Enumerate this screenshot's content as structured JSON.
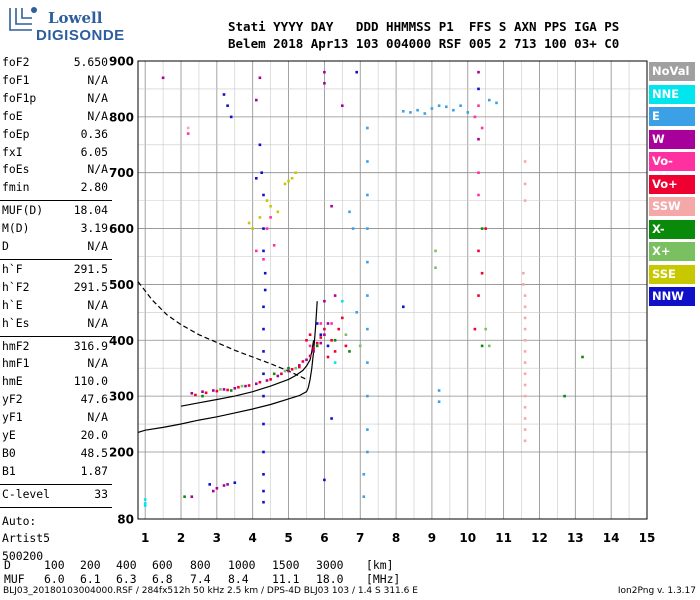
{
  "logo": {
    "line1": "Lowell",
    "line2": "DIGISONDE"
  },
  "header": {
    "labels": "Stati YYYY DAY   DDD HHMMSS P1  FFS S AXN PPS IGA PS",
    "values": "Belem 2018 Apr13 103 004000 RSF 005 2 713 100 03+ C0"
  },
  "params": {
    "group1": [
      {
        "k": "foF2",
        "v": "5.650"
      },
      {
        "k": "foF1",
        "v": "N/A"
      },
      {
        "k": "foF1p",
        "v": "N/A"
      },
      {
        "k": "foE",
        "v": "N/A"
      },
      {
        "k": "foEp",
        "v": "0.36"
      },
      {
        "k": "fxI",
        "v": "6.05"
      },
      {
        "k": "foEs",
        "v": "N/A"
      },
      {
        "k": "fmin",
        "v": "2.80"
      }
    ],
    "group2": [
      {
        "k": "MUF(D)",
        "v": "18.04"
      },
      {
        "k": "M(D)",
        "v": "3.19"
      },
      {
        "k": "D",
        "v": "N/A"
      }
    ],
    "group3": [
      {
        "k": "h`F",
        "v": "291.5"
      },
      {
        "k": "h`F2",
        "v": "291.5"
      },
      {
        "k": "h`E",
        "v": "N/A"
      },
      {
        "k": "h`Es",
        "v": "N/A"
      }
    ],
    "group4": [
      {
        "k": "hmF2",
        "v": "316.9"
      },
      {
        "k": "hmF1",
        "v": "N/A"
      },
      {
        "k": "hmE",
        "v": "110.0"
      },
      {
        "k": "yF2",
        "v": "47.6"
      },
      {
        "k": "yF1",
        "v": "N/A"
      },
      {
        "k": "yE",
        "v": "20.0"
      },
      {
        "k": "B0",
        "v": "48.5"
      },
      {
        "k": "B1",
        "v": "1.87"
      }
    ],
    "group5": [
      {
        "k": "C-level",
        "v": "33"
      }
    ],
    "auto": [
      "Auto:",
      "Artist5",
      "500200"
    ]
  },
  "legend": [
    {
      "label": "NoVal",
      "bg": "#a0a0a0",
      "fg": "#ffffff"
    },
    {
      "label": "NNE",
      "bg": "#00e5ee",
      "fg": "#ffffff"
    },
    {
      "label": "E",
      "bg": "#3ca0e6",
      "fg": "#ffffff"
    },
    {
      "label": "W",
      "bg": "#a8009a",
      "fg": "#ffffff"
    },
    {
      "label": "Vo-",
      "bg": "#ff30a0",
      "fg": "#ffffff"
    },
    {
      "label": "Vo+",
      "bg": "#ee0030",
      "fg": "#ffffff"
    },
    {
      "label": "SSW",
      "bg": "#f4a8a8",
      "fg": "#ffffff"
    },
    {
      "label": "X-",
      "bg": "#0a8a0a",
      "fg": "#ffffff"
    },
    {
      "label": "X+",
      "bg": "#7ac060",
      "fg": "#ffffff"
    },
    {
      "label": "SSE",
      "bg": "#c8c800",
      "fg": "#ffffff"
    },
    {
      "label": "NNW",
      "bg": "#1010c8",
      "fg": "#ffffff"
    }
  ],
  "muf_table": {
    "D": [
      "D",
      "100",
      "200",
      "400",
      "600",
      "800",
      "1000",
      "1500",
      "3000",
      "[km]"
    ],
    "MUF": [
      "MUF",
      "6.0",
      "6.1",
      "6.3",
      "6.8",
      "7.4",
      "8.4",
      "11.1",
      "18.0",
      "[MHz]"
    ]
  },
  "footer": {
    "left": "BLJ03_20180103004000.RSF / 284fx512h 50 kHz 2.5 km / DPS-4D BLJ03 103 / 1.4 S 311.6 E",
    "right": "Ion2Png v. 1.3.17"
  },
  "chart_data": {
    "type": "scatter",
    "x_ticks": [
      "1",
      "2",
      "3",
      "4",
      "5",
      "6",
      "7",
      "8",
      "9",
      "10",
      "11",
      "12",
      "13",
      "14",
      "15"
    ],
    "y_ticks": [
      "80",
      "200",
      "300",
      "400",
      "500",
      "600",
      "700",
      "800",
      "900"
    ],
    "xlim": [
      0.8,
      15
    ],
    "ylim": [
      80,
      900
    ],
    "grid": true,
    "legend_position": "right",
    "series": [
      {
        "color": "#a8009a",
        "points": [
          [
            2.3,
            305
          ],
          [
            2.6,
            308
          ],
          [
            2.9,
            310
          ],
          [
            3.2,
            312
          ],
          [
            3.5,
            314
          ],
          [
            3.8,
            318
          ],
          [
            4.1,
            322
          ],
          [
            4.4,
            328
          ],
          [
            4.7,
            336
          ],
          [
            5.0,
            345
          ],
          [
            5.3,
            355
          ],
          [
            5.5,
            365
          ],
          [
            5.7,
            380
          ],
          [
            5.9,
            395
          ],
          [
            6.0,
            410
          ],
          [
            6.1,
            430
          ],
          [
            1.5,
            870
          ],
          [
            4.2,
            870
          ],
          [
            4.1,
            830
          ],
          [
            6.0,
            860
          ],
          [
            6.0,
            880
          ],
          [
            6.5,
            820
          ],
          [
            6.2,
            640
          ],
          [
            10.3,
            880
          ],
          [
            10.3,
            760
          ],
          [
            2.9,
            130
          ],
          [
            3.0,
            135
          ],
          [
            3.2,
            140
          ],
          [
            3.3,
            142
          ],
          [
            2.3,
            120
          ],
          [
            6.0,
            470
          ],
          [
            6.3,
            480
          ]
        ]
      },
      {
        "color": "#ee0030",
        "points": [
          [
            2.4,
            302
          ],
          [
            2.7,
            306
          ],
          [
            3.0,
            309
          ],
          [
            3.3,
            311
          ],
          [
            3.6,
            316
          ],
          [
            3.9,
            319
          ],
          [
            4.2,
            325
          ],
          [
            4.5,
            330
          ],
          [
            4.8,
            340
          ],
          [
            5.1,
            348
          ],
          [
            5.3,
            352
          ],
          [
            5.4,
            362
          ],
          [
            5.6,
            372
          ],
          [
            5.7,
            385
          ],
          [
            5.8,
            395
          ],
          [
            5.9,
            405
          ],
          [
            6.0,
            420
          ],
          [
            6.2,
            400
          ],
          [
            6.4,
            420
          ],
          [
            6.5,
            440
          ],
          [
            6.6,
            390
          ],
          [
            5.5,
            400
          ],
          [
            5.6,
            410
          ],
          [
            10.3,
            560
          ],
          [
            10.4,
            520
          ],
          [
            10.2,
            420
          ],
          [
            10.3,
            480
          ],
          [
            10.5,
            600
          ],
          [
            6.3,
            380
          ],
          [
            6.1,
            370
          ]
        ]
      },
      {
        "color": "#ff30a0",
        "points": [
          [
            4.1,
            560
          ],
          [
            4.3,
            545
          ],
          [
            4.4,
            600
          ],
          [
            4.5,
            620
          ],
          [
            10.2,
            800
          ],
          [
            10.3,
            820
          ],
          [
            10.4,
            780
          ],
          [
            10.3,
            700
          ],
          [
            10.3,
            660
          ],
          [
            4.6,
            570
          ],
          [
            5.6,
            390
          ],
          [
            5.9,
            430
          ],
          [
            2.2,
            770
          ],
          [
            6.2,
            430
          ]
        ]
      },
      {
        "color": "#f4a8a8",
        "points": [
          [
            11.55,
            520
          ],
          [
            11.55,
            500
          ],
          [
            11.6,
            480
          ],
          [
            11.6,
            460
          ],
          [
            11.6,
            440
          ],
          [
            11.6,
            420
          ],
          [
            11.6,
            400
          ],
          [
            11.6,
            380
          ],
          [
            11.6,
            360
          ],
          [
            11.6,
            340
          ],
          [
            11.6,
            320
          ],
          [
            11.6,
            300
          ],
          [
            11.6,
            280
          ],
          [
            11.6,
            260
          ],
          [
            11.6,
            240
          ],
          [
            11.6,
            220
          ],
          [
            11.6,
            650
          ],
          [
            11.6,
            720
          ],
          [
            11.6,
            680
          ],
          [
            2.2,
            780
          ]
        ]
      },
      {
        "color": "#3ca0e6",
        "points": [
          [
            8.2,
            810
          ],
          [
            8.4,
            808
          ],
          [
            8.6,
            812
          ],
          [
            8.8,
            806
          ],
          [
            9.0,
            815
          ],
          [
            9.2,
            820
          ],
          [
            9.4,
            818
          ],
          [
            9.6,
            812
          ],
          [
            9.8,
            820
          ],
          [
            10.0,
            808
          ],
          [
            10.6,
            830
          ],
          [
            10.8,
            825
          ],
          [
            7.2,
            780
          ],
          [
            7.2,
            720
          ],
          [
            7.2,
            660
          ],
          [
            7.2,
            600
          ],
          [
            7.2,
            540
          ],
          [
            7.2,
            480
          ],
          [
            7.2,
            420
          ],
          [
            7.2,
            360
          ],
          [
            7.2,
            300
          ],
          [
            7.2,
            240
          ],
          [
            7.2,
            200
          ],
          [
            7.1,
            160
          ],
          [
            7.1,
            120
          ],
          [
            9.2,
            290
          ],
          [
            9.2,
            310
          ],
          [
            6.7,
            630
          ],
          [
            6.8,
            600
          ],
          [
            6.9,
            450
          ]
        ]
      },
      {
        "color": "#00e5ee",
        "points": [
          [
            1.0,
            115
          ],
          [
            1.0,
            108
          ],
          [
            1.0,
            104
          ],
          [
            6.3,
            360
          ],
          [
            6.5,
            470
          ]
        ]
      },
      {
        "color": "#0a8a0a",
        "points": [
          [
            2.6,
            300
          ],
          [
            3.4,
            310
          ],
          [
            4.6,
            340
          ],
          [
            5.0,
            350
          ],
          [
            5.8,
            390
          ],
          [
            6.3,
            400
          ],
          [
            10.4,
            600
          ],
          [
            10.4,
            390
          ],
          [
            12.7,
            300
          ],
          [
            13.2,
            370
          ],
          [
            6.7,
            380
          ],
          [
            2.1,
            120
          ]
        ]
      },
      {
        "color": "#7ac060",
        "points": [
          [
            3.1,
            312
          ],
          [
            3.7,
            318
          ],
          [
            4.9,
            345
          ],
          [
            5.2,
            350
          ],
          [
            6.6,
            410
          ],
          [
            7.0,
            390
          ],
          [
            10.5,
            420
          ],
          [
            10.6,
            390
          ],
          [
            9.1,
            560
          ],
          [
            9.1,
            530
          ]
        ]
      },
      {
        "color": "#c8c800",
        "points": [
          [
            5.0,
            685
          ],
          [
            5.1,
            690
          ],
          [
            5.2,
            700
          ],
          [
            4.9,
            680
          ],
          [
            4.4,
            650
          ],
          [
            4.5,
            640
          ],
          [
            4.7,
            630
          ],
          [
            4.2,
            620
          ],
          [
            3.9,
            610
          ],
          [
            4.0,
            600
          ]
        ]
      },
      {
        "color": "#1010c8",
        "points": [
          [
            4.2,
            750
          ],
          [
            4.25,
            700
          ],
          [
            4.3,
            660
          ],
          [
            4.3,
            600
          ],
          [
            4.3,
            560
          ],
          [
            4.35,
            520
          ],
          [
            4.35,
            490
          ],
          [
            4.3,
            460
          ],
          [
            4.3,
            420
          ],
          [
            4.3,
            380
          ],
          [
            4.3,
            340
          ],
          [
            4.3,
            300
          ],
          [
            4.3,
            250
          ],
          [
            4.3,
            200
          ],
          [
            4.3,
            160
          ],
          [
            4.3,
            130
          ],
          [
            4.3,
            110
          ],
          [
            4.1,
            690
          ],
          [
            5.8,
            430
          ],
          [
            5.9,
            410
          ],
          [
            6.1,
            390
          ],
          [
            6.2,
            260
          ],
          [
            3.2,
            840
          ],
          [
            3.3,
            820
          ],
          [
            3.4,
            800
          ],
          [
            8.2,
            460
          ],
          [
            2.8,
            142
          ],
          [
            3.5,
            145
          ],
          [
            6.0,
            150
          ],
          [
            6.9,
            880
          ],
          [
            10.3,
            850
          ]
        ]
      }
    ],
    "curves": [
      {
        "style": "solid",
        "color": "#000000",
        "points": [
          [
            0.8,
            235
          ],
          [
            1.0,
            239
          ],
          [
            1.5,
            244
          ],
          [
            2.0,
            250
          ],
          [
            2.5,
            257
          ],
          [
            3.0,
            263
          ],
          [
            3.5,
            270
          ],
          [
            4.0,
            277
          ],
          [
            4.5,
            285
          ],
          [
            5.0,
            295
          ],
          [
            5.3,
            301
          ],
          [
            5.5,
            308
          ],
          [
            5.55,
            315
          ],
          [
            5.6,
            330
          ],
          [
            5.65,
            350
          ],
          [
            5.7,
            380
          ],
          [
            5.75,
            420
          ],
          [
            5.78,
            450
          ],
          [
            5.8,
            470
          ]
        ]
      },
      {
        "style": "dashed",
        "color": "#000000",
        "points": [
          [
            0.8,
            505
          ],
          [
            1.2,
            472
          ],
          [
            1.6,
            446
          ],
          [
            2.0,
            428
          ],
          [
            2.5,
            410
          ],
          [
            3.0,
            396
          ],
          [
            3.5,
            382
          ],
          [
            4.0,
            370
          ],
          [
            4.5,
            358
          ],
          [
            5.0,
            345
          ],
          [
            5.3,
            336
          ],
          [
            5.5,
            330
          ]
        ]
      },
      {
        "style": "solid",
        "color": "#000000",
        "points": [
          [
            2.0,
            282
          ],
          [
            2.5,
            288
          ],
          [
            3.0,
            294
          ],
          [
            3.5,
            300
          ],
          [
            4.0,
            308
          ],
          [
            4.5,
            318
          ],
          [
            5.0,
            330
          ],
          [
            5.2,
            337
          ],
          [
            5.4,
            346
          ],
          [
            5.5,
            354
          ],
          [
            5.6,
            365
          ],
          [
            5.65,
            380
          ],
          [
            5.7,
            400
          ]
        ]
      }
    ]
  }
}
